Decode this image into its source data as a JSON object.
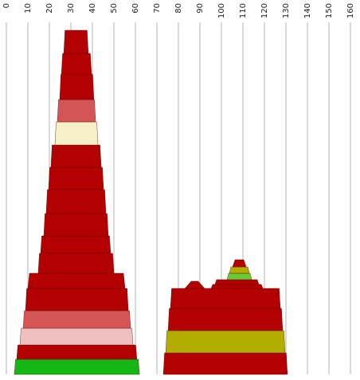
{
  "chart_data": {
    "type": "stacked-trapezoid",
    "xlim": [
      0,
      160
    ],
    "xticks": [
      0,
      10,
      20,
      30,
      40,
      50,
      60,
      70,
      80,
      90,
      100,
      110,
      120,
      130,
      140,
      150,
      160
    ],
    "grid": true,
    "stacks": [
      {
        "segments": [
          {
            "values": [
              3.7,
              61.9
            ],
            "color": "#14b814"
          },
          {
            "values": [
              4.8,
              60.7
            ],
            "color": "#b30000"
          },
          {
            "values": [
              6.3,
              58.9
            ],
            "color": "#f0c0c0"
          },
          {
            "values": [
              7.8,
              57.8
            ],
            "color": "#d45555"
          },
          {
            "values": [
              8.9,
              56.7
            ],
            "color": "#b30000"
          },
          {
            "values": [
              10.0,
              55.2
            ],
            "color": "#b30000"
          },
          {
            "values": [
              14.8,
              50.0
            ],
            "color": "#b30000"
          },
          {
            "values": [
              15.9,
              48.5
            ],
            "color": "#b30000"
          },
          {
            "values": [
              17.4,
              47.4
            ],
            "color": "#b30000"
          },
          {
            "values": [
              18.5,
              46.3
            ],
            "color": "#b30000"
          },
          {
            "values": [
              19.6,
              45.2
            ],
            "color": "#b30000"
          },
          {
            "values": [
              20.7,
              44.1
            ],
            "color": "#b30000"
          },
          {
            "values": [
              22.6,
              42.6
            ],
            "color": "#f5f0c8"
          },
          {
            "values": [
              23.7,
              41.5
            ],
            "color": "#d45555"
          },
          {
            "values": [
              24.8,
              40.7
            ],
            "color": "#b30000"
          },
          {
            "values": [
              25.6,
              39.6
            ],
            "color": "#b30000"
          },
          {
            "values": [
              26.7,
              38.1
            ],
            "color": "#b30000"
          }
        ]
      },
      {
        "segments": [
          {
            "values": [
              73.0,
              130.7
            ],
            "color": "#b30000"
          },
          {
            "values": [
              74.1,
              129.6
            ],
            "color": "#b3ad00"
          },
          {
            "values": [
              75.2,
              128.5
            ],
            "color": "#b30000"
          },
          {
            "values": [
              76.3,
              127.4
            ],
            "color": "#b30000"
          },
          {
            "values": [
              83.0,
              92.2
            ],
            "color": "#b30000"
          },
          {
            "values": [
              95.2,
              119.3
            ],
            "color": "#b30000"
          },
          {
            "values": [
              97.0,
              117.4
            ],
            "color": "#b30000"
          },
          {
            "values": [
              102.6,
              114.1
            ],
            "color": "#66cc33"
          },
          {
            "values": [
              103.7,
              113.0
            ],
            "color": "#b3ad00"
          },
          {
            "values": [
              105.2,
              111.5
            ],
            "color": "#b30000"
          }
        ]
      }
    ]
  }
}
